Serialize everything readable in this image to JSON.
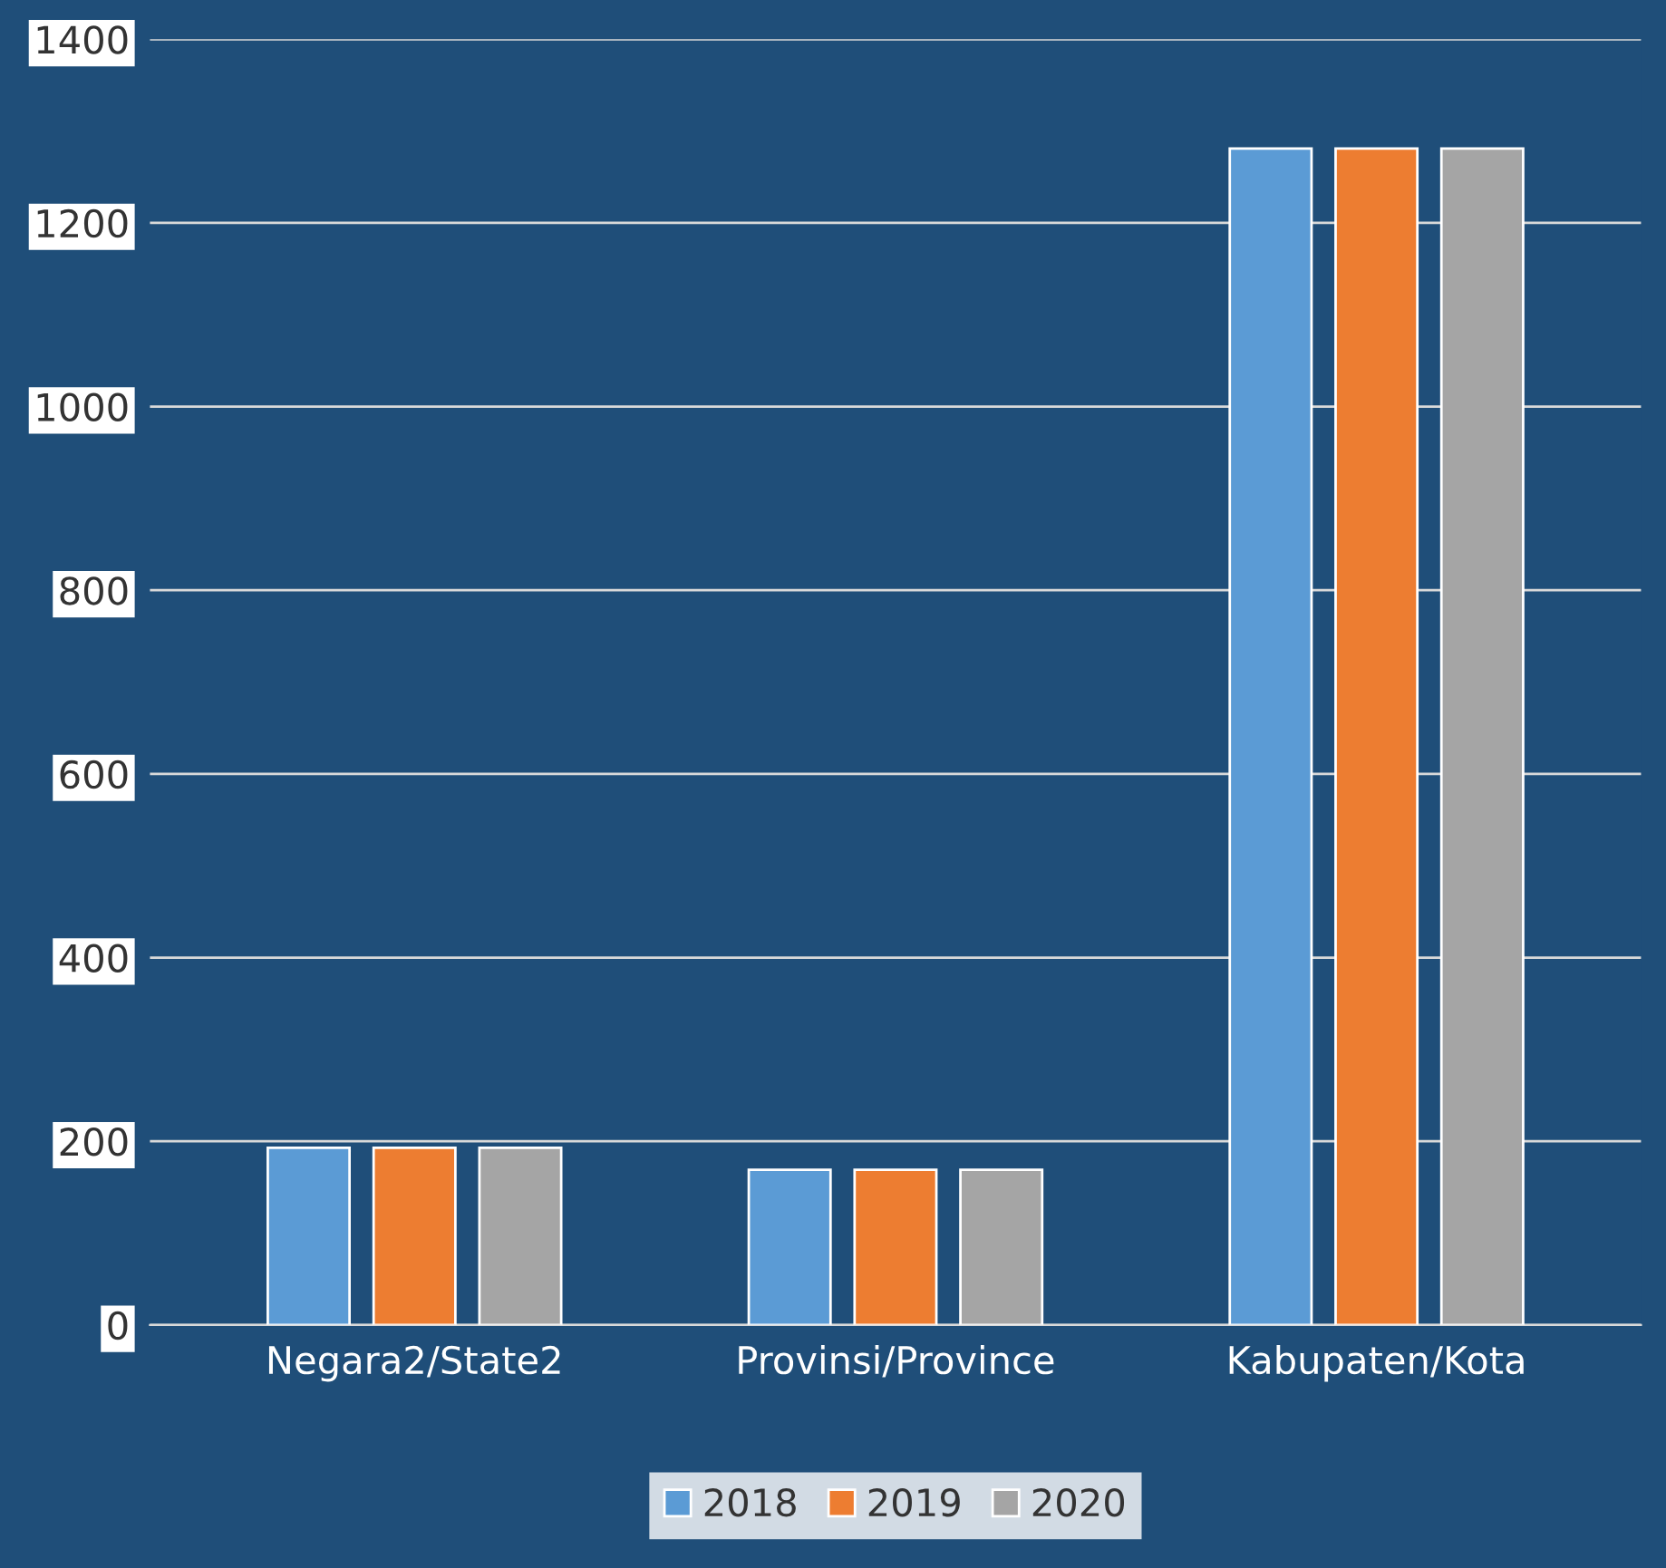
{
  "chart_data": {
    "type": "bar",
    "categories": [
      "Negara2/State2",
      "Provinsi/Province",
      "Kabupaten/Kota"
    ],
    "series": [
      {
        "name": "2018",
        "color": "#5b9bd5",
        "values": [
          193,
          169,
          1281
        ]
      },
      {
        "name": "2019",
        "color": "#ed7d31",
        "values": [
          193,
          169,
          1281
        ]
      },
      {
        "name": "2020",
        "color": "#a5a5a5",
        "values": [
          193,
          169,
          1281
        ]
      }
    ],
    "ylim": [
      0,
      1400
    ],
    "yticks": [
      0,
      200,
      400,
      600,
      800,
      1000,
      1200,
      1400
    ],
    "grid": "y",
    "legend": "bottom"
  }
}
